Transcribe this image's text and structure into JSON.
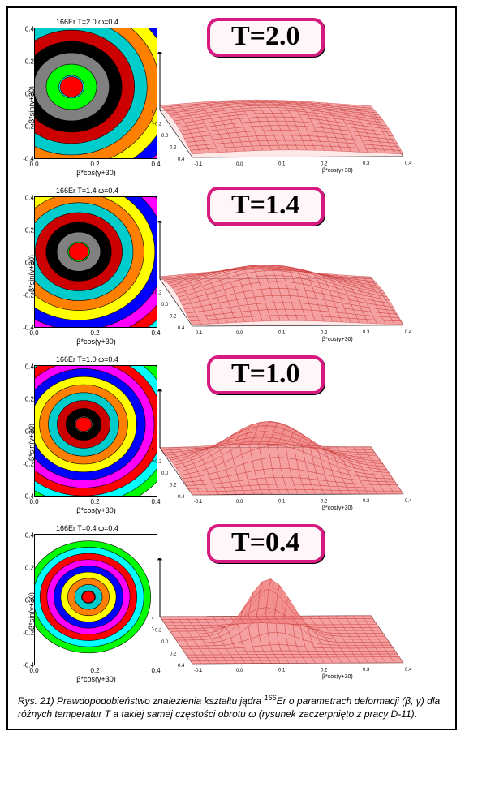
{
  "figure": {
    "nucleus": "166Er",
    "omega": "0.4",
    "caption_prefix": "Rys. 21)",
    "caption_text": "Prawdopodobieństwo znalezienia kształtu jądra ",
    "caption_nucleus_sup": "166",
    "caption_nucleus_sym": "Er",
    "caption_text2": " o parametrach deformacji (β, γ) dla różnych temperatur T a takiej samej częstości obrotu ω (rysunek zaczerpnięto z pracy D-11).",
    "xaxis_label": "β*cos(γ+30)",
    "yaxis_label": "β*sin(γ+30)",
    "xticks": [
      "0.0",
      "0.2",
      "0.4"
    ],
    "yticks": [
      "0.4",
      "0.2",
      "0.0",
      "-0.2",
      "-0.4"
    ],
    "surface_axis_left": "β*sin(γ+30)",
    "surface_axis_right": "β*cos(γ+30)",
    "surface_ticks_left": [
      "0.4",
      "0.2",
      "0.0",
      "-0.2",
      "-0.4"
    ],
    "surface_ticks_right": [
      "-0.1",
      "0.0",
      "0.1",
      "0.2",
      "0.3",
      "0.4"
    ],
    "badge_border_color": "#d61a7f",
    "badge_bg_color": "#fff6fa",
    "surface_color": "#f28a8a",
    "surface_mesh_color": "#c73535",
    "contour_colors": [
      "#00ff00",
      "#00ffff",
      "#ff0000",
      "#ff00ff",
      "#0000ff",
      "#ffff00",
      "#ff8000",
      "#00cccc",
      "#cc0000",
      "#000000",
      "#808080"
    ],
    "rows": [
      {
        "T": "2.0",
        "title": "166Er T=2.0 ω=0.4",
        "peak_spread": 0.92,
        "peak_height": 0.35,
        "peak_center_x": 0.15,
        "peak_center_y": 0.05,
        "contour_rings": 13
      },
      {
        "T": "1.4",
        "title": "166Er T=1.4 ω=0.4",
        "peak_spread": 0.7,
        "peak_height": 0.55,
        "peak_center_x": 0.18,
        "peak_center_y": 0.08,
        "contour_rings": 12
      },
      {
        "T": "1.0",
        "title": "166Er T=1.0 ω=0.4",
        "peak_spread": 0.48,
        "peak_height": 0.8,
        "peak_center_x": 0.2,
        "peak_center_y": 0.05,
        "contour_rings": 11
      },
      {
        "T": "0.4",
        "title": "166Er T=0.4 ω=0.4",
        "peak_spread": 0.25,
        "peak_height": 1.0,
        "peak_center_x": 0.22,
        "peak_center_y": 0.02,
        "contour_rings": 9
      }
    ]
  }
}
